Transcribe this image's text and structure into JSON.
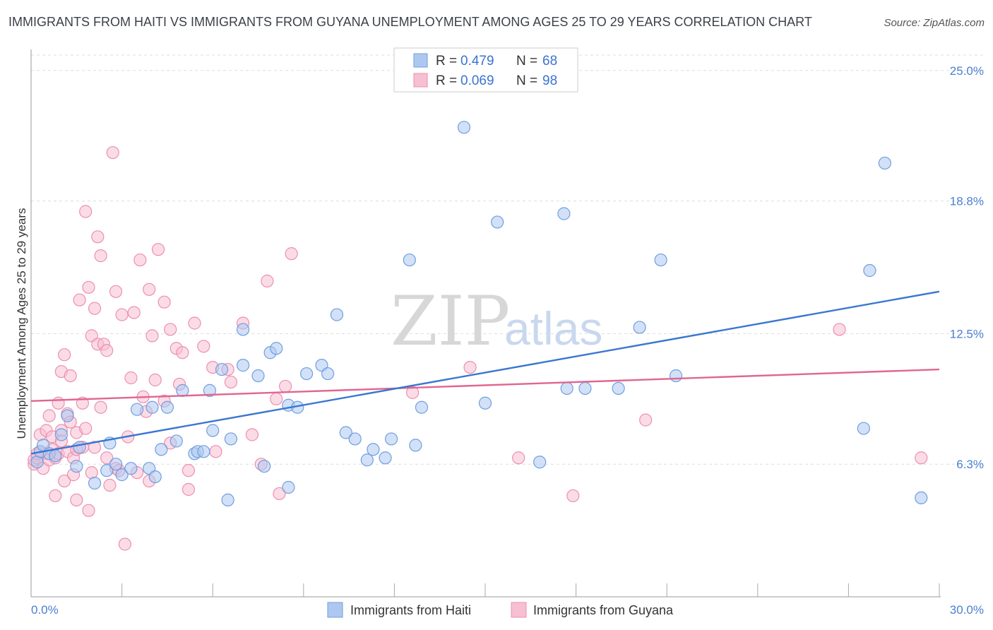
{
  "title": "IMMIGRANTS FROM HAITI VS IMMIGRANTS FROM GUYANA UNEMPLOYMENT AMONG AGES 25 TO 29 YEARS CORRELATION CHART",
  "source": "Source: ZipAtlas.com",
  "watermark": {
    "zip": "ZIP",
    "atlas": "atlas"
  },
  "colors": {
    "haiti_fill": "#adc8f0",
    "haiti_stroke": "#6f9ee0",
    "haiti_line": "#3a76d2",
    "guyana_fill": "#f7bfd2",
    "guyana_stroke": "#ec8fb0",
    "guyana_line": "#e0668f",
    "tick_text": "#4a7fd0",
    "grid": "#dddddd"
  },
  "legend": {
    "rows": [
      {
        "r_label": "R =",
        "r_value": "0.479",
        "n_label": "N =",
        "n_value": "68"
      },
      {
        "r_label": "R =",
        "r_value": "0.069",
        "n_label": "N =",
        "n_value": "98"
      }
    ]
  },
  "chart_data": {
    "type": "scatter",
    "title": "IMMIGRANTS FROM HAITI VS IMMIGRANTS FROM GUYANA UNEMPLOYMENT AMONG AGES 25 TO 29 YEARS CORRELATION CHART",
    "xlabel": "",
    "ylabel": "Unemployment Among Ages 25 to 29 years",
    "xlim": [
      0,
      30
    ],
    "ylim": [
      0,
      26
    ],
    "x_tick_labels": [
      "0.0%",
      "30.0%"
    ],
    "y_ticks": [
      6.3,
      12.5,
      18.8,
      25.0
    ],
    "y_tick_labels": [
      "6.3%",
      "12.5%",
      "18.8%",
      "25.0%"
    ],
    "x_minor_ticks": [
      3,
      6,
      9,
      12,
      15,
      18,
      21,
      24,
      27,
      30
    ],
    "series": [
      {
        "name": "Immigrants from Haiti",
        "R": 0.479,
        "N": 68,
        "trend": {
          "x": [
            0,
            30
          ],
          "y": [
            6.8,
            14.5
          ]
        },
        "points": [
          [
            0.2,
            6.4
          ],
          [
            0.3,
            6.9
          ],
          [
            0.4,
            7.2
          ],
          [
            0.6,
            6.8
          ],
          [
            0.8,
            6.7
          ],
          [
            1.0,
            7.7
          ],
          [
            1.2,
            8.6
          ],
          [
            1.5,
            6.2
          ],
          [
            1.6,
            7.1
          ],
          [
            2.1,
            5.4
          ],
          [
            2.5,
            6.0
          ],
          [
            2.6,
            7.3
          ],
          [
            2.8,
            6.3
          ],
          [
            3.0,
            5.8
          ],
          [
            3.3,
            6.1
          ],
          [
            3.5,
            8.9
          ],
          [
            3.9,
            6.1
          ],
          [
            4.0,
            9.0
          ],
          [
            4.1,
            5.7
          ],
          [
            4.3,
            7.0
          ],
          [
            4.5,
            9.0
          ],
          [
            4.8,
            7.4
          ],
          [
            5.0,
            9.8
          ],
          [
            5.4,
            6.8
          ],
          [
            5.5,
            6.9
          ],
          [
            5.7,
            6.9
          ],
          [
            5.9,
            9.8
          ],
          [
            6.0,
            7.9
          ],
          [
            6.3,
            10.8
          ],
          [
            6.5,
            4.6
          ],
          [
            6.6,
            7.5
          ],
          [
            7.0,
            12.7
          ],
          [
            7.0,
            11.0
          ],
          [
            7.5,
            10.5
          ],
          [
            7.7,
            6.2
          ],
          [
            7.9,
            11.6
          ],
          [
            8.1,
            11.8
          ],
          [
            8.5,
            9.1
          ],
          [
            8.5,
            5.2
          ],
          [
            8.8,
            9.0
          ],
          [
            9.1,
            10.6
          ],
          [
            9.6,
            11.0
          ],
          [
            9.8,
            10.6
          ],
          [
            10.1,
            13.4
          ],
          [
            10.4,
            7.8
          ],
          [
            10.7,
            7.5
          ],
          [
            11.1,
            6.5
          ],
          [
            11.3,
            7.0
          ],
          [
            11.7,
            6.6
          ],
          [
            11.9,
            7.5
          ],
          [
            12.5,
            16.0
          ],
          [
            12.7,
            7.2
          ],
          [
            12.9,
            9.0
          ],
          [
            14.3,
            22.3
          ],
          [
            15.0,
            9.2
          ],
          [
            15.4,
            17.8
          ],
          [
            16.8,
            6.4
          ],
          [
            17.6,
            18.2
          ],
          [
            17.7,
            9.9
          ],
          [
            18.3,
            9.9
          ],
          [
            19.4,
            9.9
          ],
          [
            20.1,
            12.8
          ],
          [
            20.8,
            16.0
          ],
          [
            21.3,
            10.5
          ],
          [
            27.5,
            8.0
          ],
          [
            27.7,
            15.5
          ],
          [
            28.2,
            20.6
          ],
          [
            29.4,
            4.7
          ]
        ]
      },
      {
        "name": "Immigrants from Guyana",
        "R": 0.069,
        "N": 98,
        "trend": {
          "x": [
            0,
            30
          ],
          "y": [
            9.3,
            10.8
          ]
        },
        "points": [
          [
            0.1,
            6.3
          ],
          [
            0.1,
            6.5
          ],
          [
            0.2,
            6.6
          ],
          [
            0.3,
            6.9
          ],
          [
            0.3,
            7.7
          ],
          [
            0.4,
            6.1
          ],
          [
            0.5,
            6.8
          ],
          [
            0.5,
            7.9
          ],
          [
            0.6,
            6.5
          ],
          [
            0.6,
            8.6
          ],
          [
            0.7,
            7.0
          ],
          [
            0.7,
            7.6
          ],
          [
            0.8,
            4.8
          ],
          [
            0.8,
            6.6
          ],
          [
            0.9,
            6.8
          ],
          [
            0.9,
            9.2
          ],
          [
            1.0,
            7.9
          ],
          [
            1.0,
            10.7
          ],
          [
            1.1,
            5.5
          ],
          [
            1.1,
            11.5
          ],
          [
            1.2,
            6.9
          ],
          [
            1.2,
            8.7
          ],
          [
            1.3,
            8.3
          ],
          [
            1.3,
            10.5
          ],
          [
            1.4,
            5.8
          ],
          [
            1.4,
            6.6
          ],
          [
            1.5,
            4.6
          ],
          [
            1.5,
            7.8
          ],
          [
            1.6,
            14.1
          ],
          [
            1.7,
            9.2
          ],
          [
            1.7,
            7.1
          ],
          [
            1.8,
            18.3
          ],
          [
            1.8,
            8.0
          ],
          [
            1.9,
            14.7
          ],
          [
            1.9,
            4.1
          ],
          [
            2.0,
            12.4
          ],
          [
            2.0,
            5.9
          ],
          [
            2.1,
            13.7
          ],
          [
            2.1,
            7.1
          ],
          [
            2.2,
            17.1
          ],
          [
            2.2,
            12.0
          ],
          [
            2.3,
            16.2
          ],
          [
            2.3,
            9.0
          ],
          [
            2.4,
            12.0
          ],
          [
            2.5,
            6.6
          ],
          [
            2.5,
            11.7
          ],
          [
            2.6,
            5.3
          ],
          [
            2.7,
            21.1
          ],
          [
            2.8,
            14.5
          ],
          [
            2.8,
            6.1
          ],
          [
            2.9,
            6.0
          ],
          [
            3.0,
            13.4
          ],
          [
            3.1,
            2.5
          ],
          [
            3.2,
            7.6
          ],
          [
            3.3,
            10.4
          ],
          [
            3.4,
            13.5
          ],
          [
            3.5,
            5.9
          ],
          [
            3.6,
            16.0
          ],
          [
            3.7,
            9.5
          ],
          [
            3.8,
            8.8
          ],
          [
            3.9,
            14.6
          ],
          [
            3.9,
            5.5
          ],
          [
            4.0,
            12.4
          ],
          [
            4.1,
            10.3
          ],
          [
            4.2,
            16.5
          ],
          [
            4.4,
            14.0
          ],
          [
            4.4,
            9.3
          ],
          [
            4.6,
            12.7
          ],
          [
            4.6,
            7.3
          ],
          [
            4.8,
            11.8
          ],
          [
            4.9,
            10.1
          ],
          [
            5.0,
            11.6
          ],
          [
            5.2,
            6.0
          ],
          [
            5.2,
            5.1
          ],
          [
            5.4,
            13.0
          ],
          [
            5.7,
            11.9
          ],
          [
            6.0,
            10.9
          ],
          [
            6.1,
            6.9
          ],
          [
            6.5,
            10.8
          ],
          [
            6.6,
            10.2
          ],
          [
            7.0,
            13.0
          ],
          [
            7.3,
            7.7
          ],
          [
            7.6,
            6.3
          ],
          [
            7.8,
            15.0
          ],
          [
            8.1,
            9.4
          ],
          [
            8.2,
            4.9
          ],
          [
            8.4,
            10.0
          ],
          [
            8.6,
            16.3
          ],
          [
            12.6,
            9.7
          ],
          [
            14.5,
            10.9
          ],
          [
            16.1,
            6.6
          ],
          [
            17.9,
            4.8
          ],
          [
            20.3,
            8.4
          ],
          [
            26.7,
            12.7
          ],
          [
            29.4,
            6.6
          ],
          [
            0.2,
            6.8
          ],
          [
            1.0,
            7.4
          ],
          [
            1.5,
            7.0
          ]
        ]
      }
    ],
    "legend_position": "top-center"
  }
}
